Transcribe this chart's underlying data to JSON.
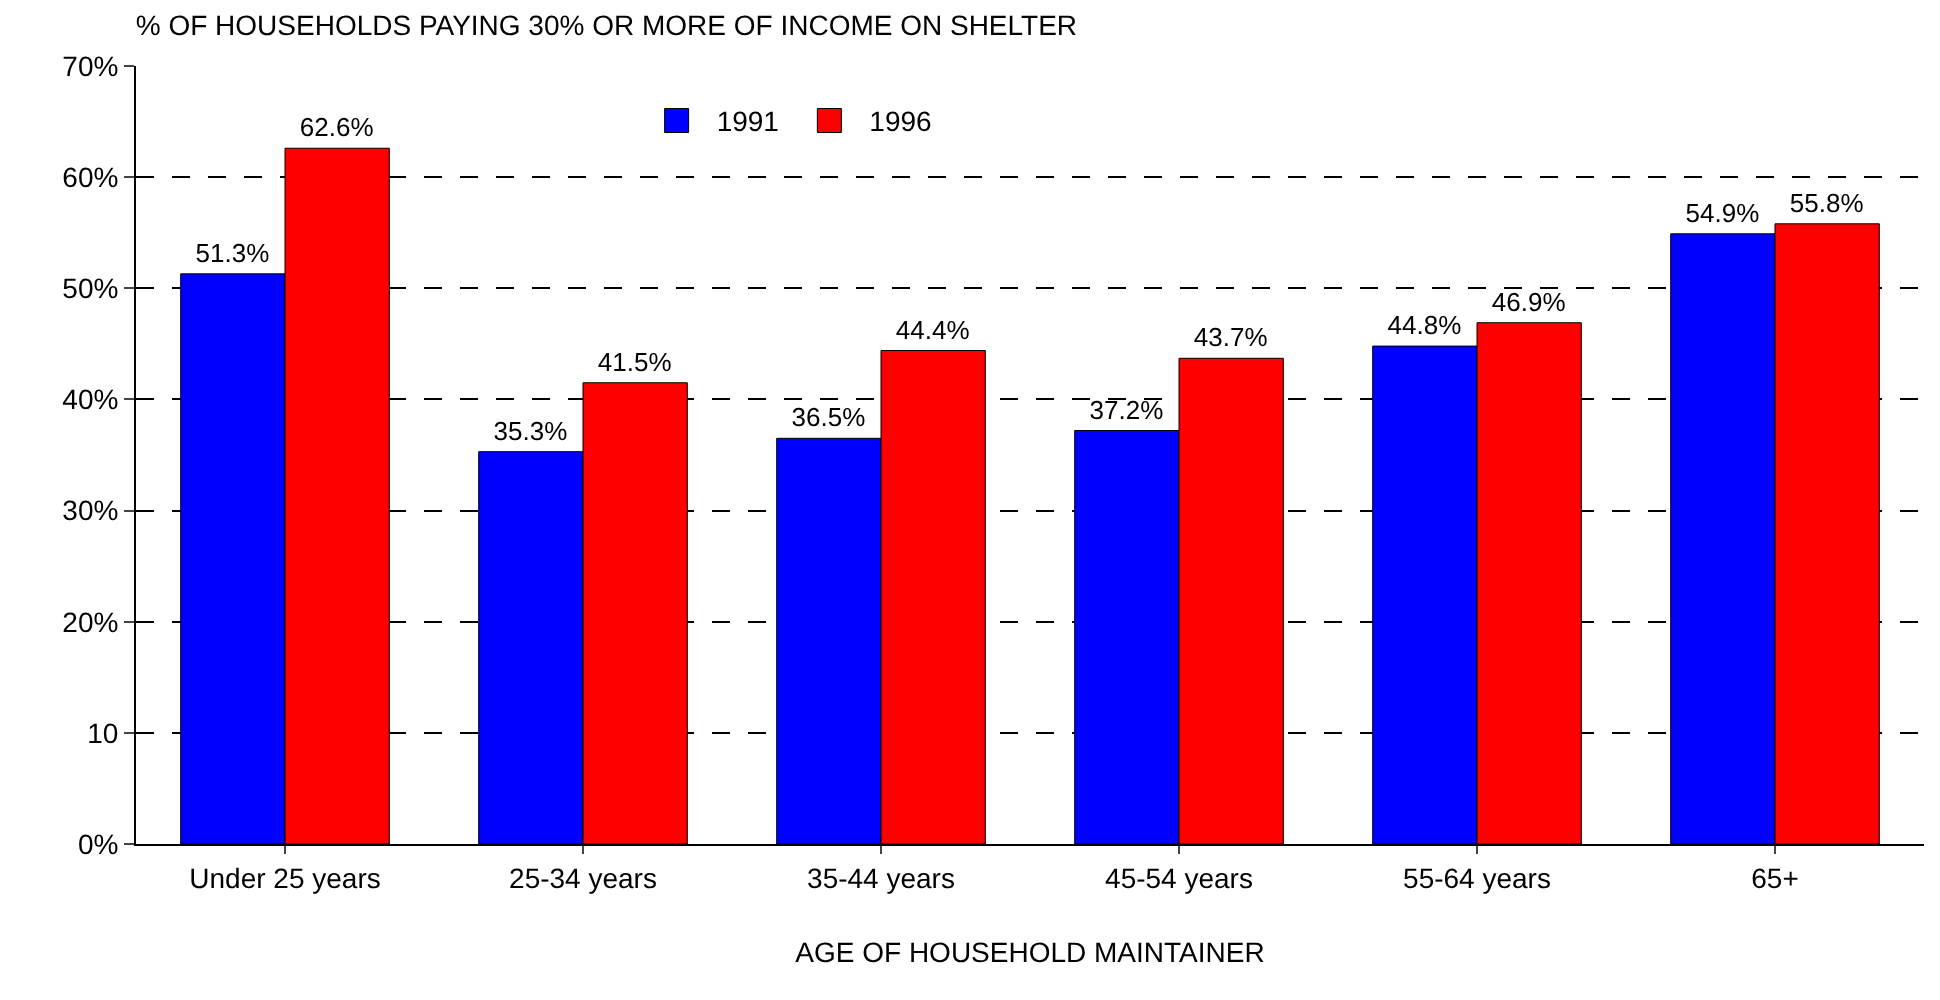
{
  "chart_data": {
    "type": "bar",
    "title": "% OF HOUSEHOLDS PAYING 30% OR MORE OF INCOME ON SHELTER",
    "xlabel": "AGE OF HOUSEHOLD MAINTAINER",
    "categories": [
      "Under 25 years",
      "25-34 years",
      "35-44 years",
      "45-54 years",
      "55-64 years",
      "65+"
    ],
    "series": [
      {
        "name": "1991",
        "color": "#0000ff",
        "values": [
          51.3,
          35.3,
          36.5,
          37.2,
          44.8,
          54.9
        ],
        "value_labels": [
          "51.3%",
          "35.3%",
          "36.5%",
          "37.2%",
          "44.8%",
          "54.9%"
        ]
      },
      {
        "name": "1996",
        "color": "#ff0000",
        "values": [
          62.6,
          41.5,
          44.4,
          43.7,
          46.9,
          55.8
        ],
        "value_labels": [
          "62.6%",
          "41.5%",
          "44.4%",
          "43.7%",
          "46.9%",
          "55.8%"
        ]
      }
    ],
    "ylim": [
      0,
      70
    ],
    "yticks": [
      {
        "value": 0,
        "label": "0%"
      },
      10,
      {
        "value": 20,
        "label": "20%"
      },
      {
        "value": 30,
        "label": "30%"
      },
      {
        "value": 40,
        "label": "40%"
      },
      {
        "value": 50,
        "label": "50%"
      },
      {
        "value": 60,
        "label": "60%"
      },
      {
        "value": 70,
        "label": "70%"
      }
    ],
    "grid": "y",
    "legend": "top"
  }
}
